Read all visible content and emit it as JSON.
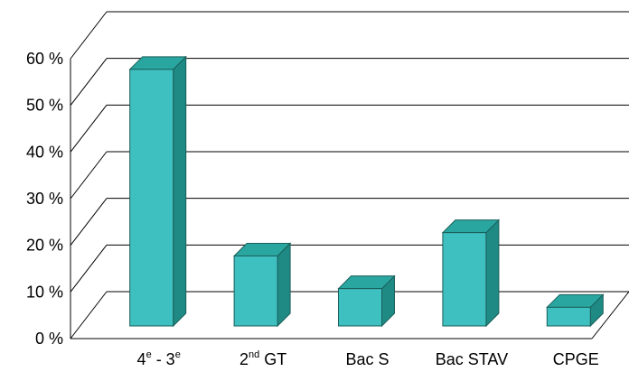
{
  "chart_data": {
    "type": "bar",
    "three_d": true,
    "grid": true,
    "categories": [
      {
        "text": "4",
        "sup": "e",
        "mid": " - 3",
        "sup2": "e",
        "full": "4e - 3e"
      },
      {
        "text": "2",
        "sup": "nd",
        "mid": " GT",
        "sup2": "",
        "full": "2nd GT"
      },
      {
        "text": "Bac S",
        "sup": "",
        "mid": "",
        "sup2": "",
        "full": "Bac S"
      },
      {
        "text": "Bac STAV",
        "sup": "",
        "mid": "",
        "sup2": "",
        "full": "Bac STAV"
      },
      {
        "text": "CPGE",
        "sup": "",
        "mid": "",
        "sup2": "",
        "full": "CPGE"
      }
    ],
    "values": [
      55,
      15,
      8,
      20,
      4
    ],
    "ylim": [
      0,
      60
    ],
    "yticks": [
      "0 %",
      "10 %",
      "20 %",
      "30 %",
      "40 %",
      "50 %",
      "60 %"
    ],
    "colors": {
      "bar_front": "#3fc0c0",
      "bar_top": "#2aa6a0",
      "bar_side": "#1f8a84",
      "bar_stroke": "#1a5f5a",
      "grid": "#000000"
    }
  }
}
